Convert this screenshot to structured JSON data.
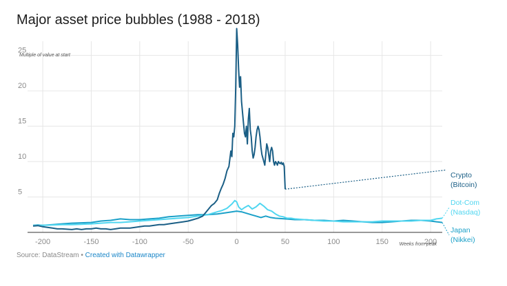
{
  "header": {
    "title": "Major asset price bubbles (1988 - 2018)"
  },
  "footer": {
    "source": "Source: DataStream",
    "separator": " • ",
    "credit": "Created with Datawrapper"
  },
  "chart_data": {
    "type": "line",
    "title": "Major asset price bubbles (1988 - 2018)",
    "ylabel": "Multiple of value at start",
    "xlabel": "Weeks from peak",
    "xlim": [
      -210,
      212
    ],
    "ylim": [
      0,
      27
    ],
    "x_ticks": [
      -200,
      -150,
      -100,
      -50,
      0,
      50,
      100,
      150,
      200
    ],
    "y_ticks": [
      5,
      10,
      15,
      20,
      25
    ],
    "grid": true,
    "series": [
      {
        "name": "Crypto (Bitcoin)",
        "label_lines": [
          "Crypto",
          "(Bitcoin)"
        ],
        "color": "#1a5e85",
        "trend_to": [
          215,
          8.8
        ],
        "points": [
          [
            -210,
            0.9
          ],
          [
            -205,
            0.95
          ],
          [
            -200,
            0.8
          ],
          [
            -195,
            0.7
          ],
          [
            -190,
            0.6
          ],
          [
            -185,
            0.5
          ],
          [
            -180,
            0.5
          ],
          [
            -175,
            0.45
          ],
          [
            -170,
            0.4
          ],
          [
            -165,
            0.5
          ],
          [
            -160,
            0.4
          ],
          [
            -155,
            0.5
          ],
          [
            -150,
            0.5
          ],
          [
            -145,
            0.6
          ],
          [
            -140,
            0.5
          ],
          [
            -135,
            0.5
          ],
          [
            -130,
            0.4
          ],
          [
            -125,
            0.5
          ],
          [
            -120,
            0.6
          ],
          [
            -115,
            0.6
          ],
          [
            -110,
            0.6
          ],
          [
            -105,
            0.7
          ],
          [
            -100,
            0.8
          ],
          [
            -95,
            0.9
          ],
          [
            -90,
            0.9
          ],
          [
            -85,
            1.0
          ],
          [
            -80,
            1.1
          ],
          [
            -75,
            1.1
          ],
          [
            -70,
            1.2
          ],
          [
            -65,
            1.3
          ],
          [
            -60,
            1.4
          ],
          [
            -55,
            1.5
          ],
          [
            -50,
            1.6
          ],
          [
            -45,
            1.8
          ],
          [
            -40,
            2.0
          ],
          [
            -35,
            2.3
          ],
          [
            -32,
            2.8
          ],
          [
            -29,
            3.3
          ],
          [
            -26,
            3.8
          ],
          [
            -23,
            4.1
          ],
          [
            -20,
            4.6
          ],
          [
            -18,
            5.5
          ],
          [
            -16,
            6.2
          ],
          [
            -14,
            6.8
          ],
          [
            -12,
            7.6
          ],
          [
            -10,
            8.7
          ],
          [
            -8,
            9.3
          ],
          [
            -6,
            11.5
          ],
          [
            -5,
            10.7
          ],
          [
            -4,
            14.0
          ],
          [
            -3,
            13.5
          ],
          [
            -2,
            15.0
          ],
          [
            -1,
            20.5
          ],
          [
            0,
            28.8
          ],
          [
            1,
            26.5
          ],
          [
            2,
            23.0
          ],
          [
            3,
            20.5
          ],
          [
            4,
            22.0
          ],
          [
            5,
            18.5
          ],
          [
            6,
            17.0
          ],
          [
            7,
            15.5
          ],
          [
            8,
            14.0
          ],
          [
            9,
            13.5
          ],
          [
            10,
            15.0
          ],
          [
            11,
            12.5
          ],
          [
            12,
            16.0
          ],
          [
            13,
            17.5
          ],
          [
            14,
            14.5
          ],
          [
            15,
            13.5
          ],
          [
            16,
            11.5
          ],
          [
            17,
            10.5
          ],
          [
            18,
            11.0
          ],
          [
            19,
            12.0
          ],
          [
            20,
            13.5
          ],
          [
            21,
            14.5
          ],
          [
            22,
            15.0
          ],
          [
            23,
            14.5
          ],
          [
            24,
            13.5
          ],
          [
            25,
            12.0
          ],
          [
            26,
            11.0
          ],
          [
            27,
            10.5
          ],
          [
            28,
            10.0
          ],
          [
            29,
            9.5
          ],
          [
            30,
            11.0
          ],
          [
            31,
            12.5
          ],
          [
            32,
            12.0
          ],
          [
            33,
            11.0
          ],
          [
            34,
            10.0
          ],
          [
            35,
            11.5
          ],
          [
            36,
            12.0
          ],
          [
            37,
            11.5
          ],
          [
            38,
            10.0
          ],
          [
            39,
            9.5
          ],
          [
            40,
            10.0
          ],
          [
            41,
            9.8
          ],
          [
            42,
            9.5
          ],
          [
            43,
            10.0
          ],
          [
            44,
            9.8
          ],
          [
            45,
            9.7
          ],
          [
            46,
            9.9
          ],
          [
            47,
            9.6
          ],
          [
            48,
            9.8
          ],
          [
            49,
            9.3
          ],
          [
            50,
            6.1
          ]
        ]
      },
      {
        "name": "Dot-Com (Nasdaq)",
        "label_lines": [
          "Dot-Com",
          "(Nasdaq)"
        ],
        "color": "#4fd6f0",
        "points": [
          [
            -210,
            1.0
          ],
          [
            -200,
            1.0
          ],
          [
            -190,
            1.05
          ],
          [
            -180,
            1.1
          ],
          [
            -170,
            1.1
          ],
          [
            -160,
            1.15
          ],
          [
            -150,
            1.2
          ],
          [
            -140,
            1.3
          ],
          [
            -130,
            1.4
          ],
          [
            -120,
            1.4
          ],
          [
            -110,
            1.5
          ],
          [
            -100,
            1.6
          ],
          [
            -90,
            1.7
          ],
          [
            -80,
            1.8
          ],
          [
            -70,
            1.9
          ],
          [
            -60,
            2.0
          ],
          [
            -50,
            2.1
          ],
          [
            -40,
            2.3
          ],
          [
            -30,
            2.5
          ],
          [
            -25,
            2.7
          ],
          [
            -20,
            2.9
          ],
          [
            -15,
            3.1
          ],
          [
            -10,
            3.4
          ],
          [
            -5,
            4.0
          ],
          [
            -2,
            4.5
          ],
          [
            0,
            4.3
          ],
          [
            2,
            3.6
          ],
          [
            5,
            3.2
          ],
          [
            8,
            3.5
          ],
          [
            12,
            3.8
          ],
          [
            16,
            3.3
          ],
          [
            20,
            3.6
          ],
          [
            24,
            4.1
          ],
          [
            28,
            3.7
          ],
          [
            32,
            3.2
          ],
          [
            36,
            3.0
          ],
          [
            40,
            2.6
          ],
          [
            44,
            2.3
          ],
          [
            48,
            2.2
          ],
          [
            52,
            2.0
          ],
          [
            56,
            2.0
          ],
          [
            60,
            1.9
          ],
          [
            70,
            1.8
          ],
          [
            80,
            1.7
          ],
          [
            90,
            1.6
          ],
          [
            100,
            1.6
          ],
          [
            110,
            1.5
          ],
          [
            120,
            1.5
          ],
          [
            130,
            1.5
          ],
          [
            140,
            1.5
          ],
          [
            150,
            1.6
          ],
          [
            160,
            1.6
          ],
          [
            170,
            1.6
          ],
          [
            180,
            1.6
          ],
          [
            190,
            1.7
          ],
          [
            200,
            1.7
          ],
          [
            206,
            1.9
          ],
          [
            212,
            2.0
          ]
        ]
      },
      {
        "name": "Japan (Nikkei)",
        "label_lines": [
          "Japan",
          "(Nikkei)"
        ],
        "color": "#1aa0c8",
        "points": [
          [
            -210,
            1.0
          ],
          [
            -205,
            1.05
          ],
          [
            -200,
            1.0
          ],
          [
            -190,
            1.1
          ],
          [
            -180,
            1.2
          ],
          [
            -170,
            1.3
          ],
          [
            -160,
            1.35
          ],
          [
            -150,
            1.4
          ],
          [
            -140,
            1.6
          ],
          [
            -130,
            1.7
          ],
          [
            -120,
            1.9
          ],
          [
            -110,
            1.8
          ],
          [
            -100,
            1.8
          ],
          [
            -90,
            1.9
          ],
          [
            -80,
            2.0
          ],
          [
            -70,
            2.2
          ],
          [
            -60,
            2.3
          ],
          [
            -50,
            2.4
          ],
          [
            -40,
            2.5
          ],
          [
            -30,
            2.5
          ],
          [
            -20,
            2.6
          ],
          [
            -10,
            2.8
          ],
          [
            0,
            3.0
          ],
          [
            5,
            2.9
          ],
          [
            10,
            2.7
          ],
          [
            15,
            2.5
          ],
          [
            20,
            2.3
          ],
          [
            25,
            2.1
          ],
          [
            30,
            2.3
          ],
          [
            35,
            2.1
          ],
          [
            40,
            2.0
          ],
          [
            50,
            1.9
          ],
          [
            60,
            1.8
          ],
          [
            70,
            1.8
          ],
          [
            80,
            1.7
          ],
          [
            90,
            1.7
          ],
          [
            100,
            1.6
          ],
          [
            110,
            1.7
          ],
          [
            120,
            1.6
          ],
          [
            130,
            1.5
          ],
          [
            140,
            1.4
          ],
          [
            150,
            1.4
          ],
          [
            160,
            1.5
          ],
          [
            170,
            1.6
          ],
          [
            180,
            1.7
          ],
          [
            190,
            1.7
          ],
          [
            200,
            1.6
          ],
          [
            206,
            1.5
          ],
          [
            212,
            1.4
          ]
        ]
      }
    ]
  }
}
